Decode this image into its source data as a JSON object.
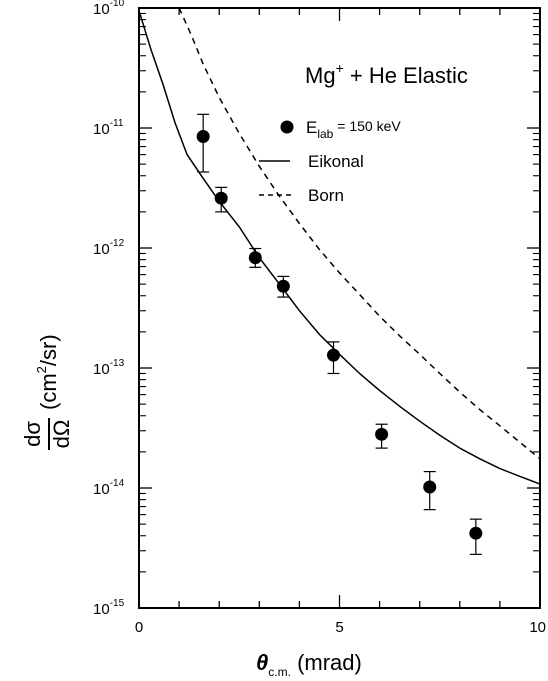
{
  "chart_data": {
    "type": "scatter",
    "title": "Mg+ + He Elastic",
    "title_parts": {
      "base": "Mg",
      "sup": "+",
      "rest": " + He  Elastic"
    },
    "xlabel": "θc.m. (mrad)",
    "xlabel_parts": {
      "symbol": "θ",
      "sub": "c.m.",
      "rest": " (mrad)"
    },
    "ylabel": "dσ/dΩ (cm²/sr)",
    "ylabel_parts": {
      "num": "dσ",
      "den": "dΩ",
      "unit_a": "(cm",
      "unit_sup": "2",
      "unit_b": "/sr)"
    },
    "xlim": [
      0,
      10
    ],
    "ylim": [
      1e-15,
      1e-10
    ],
    "yscale": "log",
    "grid": false,
    "legend_position": "top-right",
    "x_ticks": [
      {
        "value": 0,
        "label": "0"
      },
      {
        "value": 5,
        "label": "5"
      },
      {
        "value": 10,
        "label": "10"
      }
    ],
    "y_ticks": [
      {
        "value": 1e-10,
        "base": "10",
        "exp": "-10"
      },
      {
        "value": 1e-11,
        "base": "10",
        "exp": "-11"
      },
      {
        "value": 1e-12,
        "base": "10",
        "exp": "-12"
      },
      {
        "value": 1e-13,
        "base": "10",
        "exp": "-13"
      },
      {
        "value": 1e-14,
        "base": "10",
        "exp": "-14"
      },
      {
        "value": 1e-15,
        "base": "10",
        "exp": "-15"
      }
    ],
    "series": [
      {
        "name": "Elab = 150 keV",
        "legend_parts": {
          "base": "E",
          "sub": "lab",
          "rest": " = 150 keV"
        },
        "kind": "points",
        "color": "#000000",
        "points": [
          {
            "x": 1.6,
            "y": 8.5e-12,
            "ylo": 4.3e-12,
            "yhi": 1.3e-11
          },
          {
            "x": 2.05,
            "y": 2.6e-12,
            "ylo": 2e-12,
            "yhi": 3.2e-12
          },
          {
            "x": 2.9,
            "y": 8.3e-13,
            "ylo": 6.9e-13,
            "yhi": 9.9e-13
          },
          {
            "x": 3.6,
            "y": 4.8e-13,
            "ylo": 3.9e-13,
            "yhi": 5.8e-13
          },
          {
            "x": 4.85,
            "y": 1.28e-13,
            "ylo": 9e-14,
            "yhi": 1.65e-13
          },
          {
            "x": 6.05,
            "y": 2.8e-14,
            "ylo": 2.15e-14,
            "yhi": 3.4e-14
          },
          {
            "x": 7.25,
            "y": 1.02e-14,
            "ylo": 6.6e-15,
            "yhi": 1.37e-14
          },
          {
            "x": 8.4,
            "y": 4.2e-15,
            "ylo": 2.8e-15,
            "yhi": 5.5e-15
          }
        ]
      },
      {
        "name": "Eikonal",
        "kind": "line",
        "dash": "solid",
        "color": "#000000",
        "points": [
          {
            "x": 0.0,
            "y": 9.5e-11
          },
          {
            "x": 0.3,
            "y": 4.5e-11
          },
          {
            "x": 0.6,
            "y": 2.3e-11
          },
          {
            "x": 0.9,
            "y": 1.1e-11
          },
          {
            "x": 1.2,
            "y": 6e-12
          },
          {
            "x": 1.6,
            "y": 3.8e-12
          },
          {
            "x": 2.0,
            "y": 2.45e-12
          },
          {
            "x": 2.5,
            "y": 1.5e-12
          },
          {
            "x": 3.0,
            "y": 8.3e-13
          },
          {
            "x": 3.5,
            "y": 5e-13
          },
          {
            "x": 4.0,
            "y": 3e-13
          },
          {
            "x": 4.5,
            "y": 1.9e-13
          },
          {
            "x": 5.0,
            "y": 1.3e-13
          },
          {
            "x": 5.5,
            "y": 9e-14
          },
          {
            "x": 6.0,
            "y": 6.5e-14
          },
          {
            "x": 6.5,
            "y": 4.8e-14
          },
          {
            "x": 7.0,
            "y": 3.6e-14
          },
          {
            "x": 7.5,
            "y": 2.75e-14
          },
          {
            "x": 8.0,
            "y": 2.15e-14
          },
          {
            "x": 8.5,
            "y": 1.75e-14
          },
          {
            "x": 9.0,
            "y": 1.45e-14
          },
          {
            "x": 9.5,
            "y": 1.25e-14
          },
          {
            "x": 10.0,
            "y": 1.08e-14
          }
        ]
      },
      {
        "name": "Born",
        "kind": "line",
        "dash": "dashed",
        "color": "#000000",
        "points": [
          {
            "x": 1.0,
            "y": 1e-10
          },
          {
            "x": 1.3,
            "y": 6e-11
          },
          {
            "x": 1.6,
            "y": 3.4e-11
          },
          {
            "x": 2.0,
            "y": 1.8e-11
          },
          {
            "x": 2.5,
            "y": 9e-12
          },
          {
            "x": 3.0,
            "y": 4.8e-12
          },
          {
            "x": 3.5,
            "y": 2.7e-12
          },
          {
            "x": 4.0,
            "y": 1.6e-12
          },
          {
            "x": 4.5,
            "y": 9.7e-13
          },
          {
            "x": 5.0,
            "y": 6.2e-13
          },
          {
            "x": 5.5,
            "y": 4.1e-13
          },
          {
            "x": 6.0,
            "y": 2.7e-13
          },
          {
            "x": 6.5,
            "y": 1.85e-13
          },
          {
            "x": 7.0,
            "y": 1.3e-13
          },
          {
            "x": 7.5,
            "y": 9e-14
          },
          {
            "x": 8.0,
            "y": 6.3e-14
          },
          {
            "x": 8.5,
            "y": 4.5e-14
          },
          {
            "x": 9.0,
            "y": 3.3e-14
          },
          {
            "x": 9.5,
            "y": 2.4e-14
          },
          {
            "x": 10.0,
            "y": 1.75e-14
          }
        ]
      }
    ]
  }
}
